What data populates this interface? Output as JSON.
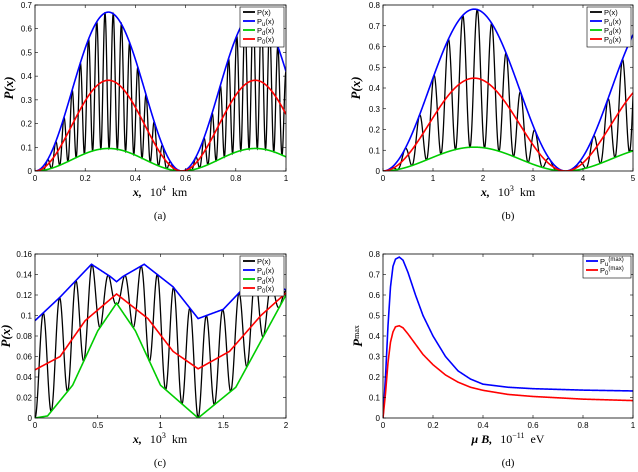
{
  "chart_data": [
    {
      "type": "line",
      "panel": "a",
      "caption": "(a)",
      "xlabel": "x,",
      "xunit": "10^4 km",
      "xunit_base": "10",
      "xunit_exp": "4",
      "xunit_suffix": "km",
      "ylabel": "P(x)",
      "xlim": [
        0,
        1
      ],
      "ylim": [
        0,
        0.7
      ],
      "xticks": [
        0,
        0.2,
        0.4,
        0.6,
        0.8,
        1
      ],
      "xtick_labels": [
        "0",
        "0.2",
        "0.4",
        "0.6",
        "0.8",
        "1"
      ],
      "yticks": [
        0,
        0.1,
        0.2,
        0.3,
        0.4,
        0.5,
        0.6,
        0.7
      ],
      "ytick_labels": [
        "0",
        "0.1",
        "0.2",
        "0.3",
        "0.4",
        "0.5",
        "0.6",
        "0.7"
      ],
      "legend": [
        "P(x)",
        "P_u(x)",
        "P_d(x)",
        "P_0(x)"
      ],
      "legend_position": "top-right",
      "model": {
        "u_peak": 0.67,
        "d_peak": 0.095,
        "env_period": 0.585,
        "fast_period": 0.0328
      },
      "series": [
        {
          "name": "P(x)",
          "color": "#000000",
          "description": "fast oscillation between P_d(x) and P_u(x)"
        },
        {
          "name": "P_u(x)",
          "color": "#0000ff",
          "x": [
            0,
            0.1,
            0.2,
            0.29,
            0.4,
            0.5,
            0.585,
            0.7,
            0.8,
            0.875,
            1.0
          ],
          "values": [
            0,
            0.23,
            0.55,
            0.67,
            0.53,
            0.18,
            0,
            0.25,
            0.58,
            0.66,
            0.42
          ]
        },
        {
          "name": "P_d(x)",
          "color": "#00cc00",
          "x": [
            0,
            0.1,
            0.2,
            0.29,
            0.4,
            0.5,
            0.585,
            0.7,
            0.8,
            0.875,
            1.0
          ],
          "values": [
            0,
            0.03,
            0.08,
            0.095,
            0.075,
            0.025,
            0,
            0.035,
            0.08,
            0.094,
            0.06
          ]
        },
        {
          "name": "P_0(x)",
          "color": "#ff0000",
          "x": [
            0,
            0.1,
            0.2,
            0.29,
            0.4,
            0.5,
            0.585,
            0.7,
            0.8,
            0.875,
            1.0
          ],
          "values": [
            0,
            0.13,
            0.31,
            0.38,
            0.3,
            0.1,
            0,
            0.14,
            0.33,
            0.38,
            0.24
          ]
        }
      ]
    },
    {
      "type": "line",
      "panel": "b",
      "caption": "(b)",
      "xlabel": "x,",
      "xunit": "10^3 km",
      "xunit_base": "10",
      "xunit_exp": "3",
      "xunit_suffix": "km",
      "ylabel": "P(x)",
      "xlim": [
        0,
        5
      ],
      "ylim": [
        0,
        0.8
      ],
      "xticks": [
        0,
        1,
        2,
        3,
        4,
        5
      ],
      "xtick_labels": [
        "0",
        "1",
        "2",
        "3",
        "4",
        "5"
      ],
      "yticks": [
        0,
        0.1,
        0.2,
        0.3,
        0.4,
        0.5,
        0.6,
        0.7,
        0.8
      ],
      "ytick_labels": [
        "0",
        "0.1",
        "0.2",
        "0.3",
        "0.4",
        "0.5",
        "0.6",
        "0.7",
        "0.8"
      ],
      "legend": [
        "P(x)",
        "P_u(x)",
        "P_d(x)",
        "P_0(x)"
      ],
      "legend_position": "top-right",
      "model": {
        "u_peak": 0.78,
        "d_peak": 0.115,
        "env_period": 3.65,
        "fast_period": 0.29
      },
      "series": [
        {
          "name": "P(x)",
          "color": "#000000",
          "description": "fast oscillation between P_d(x) and P_u(x)"
        },
        {
          "name": "P_u(x)",
          "color": "#0000ff",
          "x": [
            0,
            1,
            1.8,
            2.6,
            3.65,
            4.5,
            5
          ],
          "values": [
            0,
            0.5,
            0.78,
            0.5,
            0,
            0.45,
            0.68
          ]
        },
        {
          "name": "P_d(x)",
          "color": "#00cc00",
          "x": [
            0,
            1,
            1.8,
            2.6,
            3.65,
            4.5,
            5
          ],
          "values": [
            0,
            0.07,
            0.115,
            0.07,
            0,
            0.065,
            0.1
          ]
        },
        {
          "name": "P_0(x)",
          "color": "#ff0000",
          "x": [
            0,
            1,
            1.8,
            2.6,
            3.65,
            4.5,
            5
          ],
          "values": [
            0,
            0.28,
            0.45,
            0.28,
            0,
            0.26,
            0.39
          ]
        }
      ]
    },
    {
      "type": "line",
      "panel": "c",
      "caption": "(c)",
      "xlabel": "x,",
      "xunit": "10^3 km",
      "xunit_base": "10",
      "xunit_exp": "3",
      "xunit_suffix": "km",
      "ylabel": "P(x)",
      "xlim": [
        0,
        2
      ],
      "ylim": [
        0,
        0.16
      ],
      "xticks": [
        0,
        0.5,
        1,
        1.5,
        2
      ],
      "xtick_labels": [
        "0",
        "0.5",
        "1",
        "1.5",
        "2"
      ],
      "yticks": [
        0,
        0.02,
        0.04,
        0.06,
        0.08,
        0.1,
        0.12,
        0.14,
        0.16
      ],
      "ytick_labels": [
        "0",
        "0.02",
        "0.04",
        "0.06",
        "0.08",
        "0.1",
        "0.12",
        "0.14",
        "0.16"
      ],
      "legend": [
        "P(x)",
        "P_u(x)",
        "P_d(x)",
        "P_0(x)"
      ],
      "legend_position": "top-right",
      "model": {
        "fast_period": 0.13
      },
      "series": [
        {
          "name": "P(x)",
          "color": "#000000",
          "description": "fast oscillation between P_d(x) and P_u(x)"
        },
        {
          "name": "P_u(x)",
          "color": "#0000ff",
          "x": [
            0,
            0.2,
            0.45,
            0.6,
            0.65,
            0.7,
            0.87,
            1.1,
            1.3,
            1.5,
            1.75,
            2.0
          ],
          "values": [
            0.095,
            0.118,
            0.15,
            0.138,
            0.133,
            0.138,
            0.15,
            0.128,
            0.097,
            0.106,
            0.138,
            0.125
          ]
        },
        {
          "name": "P_d(x)",
          "color": "#00cc00",
          "x": [
            0,
            0.1,
            0.3,
            0.5,
            0.65,
            0.8,
            1.0,
            1.3,
            1.6,
            1.8,
            2.0
          ],
          "values": [
            0,
            0.002,
            0.032,
            0.085,
            0.112,
            0.085,
            0.032,
            0,
            0.03,
            0.075,
            0.12
          ]
        },
        {
          "name": "P_0(x)",
          "color": "#ff0000",
          "x": [
            0,
            0.2,
            0.4,
            0.65,
            0.9,
            1.1,
            1.3,
            1.55,
            1.8,
            2.0
          ],
          "values": [
            0.047,
            0.06,
            0.095,
            0.121,
            0.097,
            0.065,
            0.048,
            0.065,
            0.1,
            0.122
          ]
        }
      ]
    },
    {
      "type": "line",
      "panel": "d",
      "caption": "(d)",
      "xlabel": "μ B,",
      "xunit": "10^-11 eV",
      "xunit_base": "10",
      "xunit_exp": "−11",
      "xunit_suffix": "eV",
      "ylabel": "P",
      "ylabel_sub": "max",
      "xlim": [
        0,
        1
      ],
      "ylim": [
        0,
        0.8
      ],
      "xticks": [
        0,
        0.2,
        0.4,
        0.6,
        0.8,
        1
      ],
      "xtick_labels": [
        "0",
        "0.2",
        "0.4",
        "0.6",
        "0.8",
        "1"
      ],
      "yticks": [
        0,
        0.1,
        0.2,
        0.3,
        0.4,
        0.5,
        0.6,
        0.7,
        0.8
      ],
      "ytick_labels": [
        "0",
        "0.1",
        "0.2",
        "0.3",
        "0.4",
        "0.5",
        "0.6",
        "0.7",
        "0.8"
      ],
      "legend": [
        "P_u^(max)",
        "P_0^(max)"
      ],
      "legend_position": "top-right",
      "series": [
        {
          "name": "P_u^(max)",
          "color": "#0000ff",
          "x": [
            0,
            0.01,
            0.02,
            0.03,
            0.04,
            0.05,
            0.065,
            0.08,
            0.1,
            0.13,
            0.16,
            0.2,
            0.25,
            0.3,
            0.35,
            0.4,
            0.5,
            0.6,
            0.8,
            1.0
          ],
          "values": [
            0,
            0.2,
            0.45,
            0.64,
            0.74,
            0.775,
            0.785,
            0.77,
            0.71,
            0.6,
            0.5,
            0.4,
            0.3,
            0.23,
            0.19,
            0.165,
            0.15,
            0.143,
            0.136,
            0.132
          ]
        },
        {
          "name": "P_0^(max)",
          "color": "#ff0000",
          "x": [
            0,
            0.01,
            0.02,
            0.03,
            0.04,
            0.05,
            0.065,
            0.08,
            0.1,
            0.13,
            0.16,
            0.2,
            0.25,
            0.3,
            0.35,
            0.4,
            0.5,
            0.6,
            0.8,
            1.0
          ],
          "values": [
            0,
            0.12,
            0.27,
            0.37,
            0.42,
            0.445,
            0.45,
            0.44,
            0.41,
            0.36,
            0.31,
            0.26,
            0.21,
            0.175,
            0.15,
            0.135,
            0.115,
            0.105,
            0.092,
            0.085
          ]
        }
      ]
    }
  ]
}
